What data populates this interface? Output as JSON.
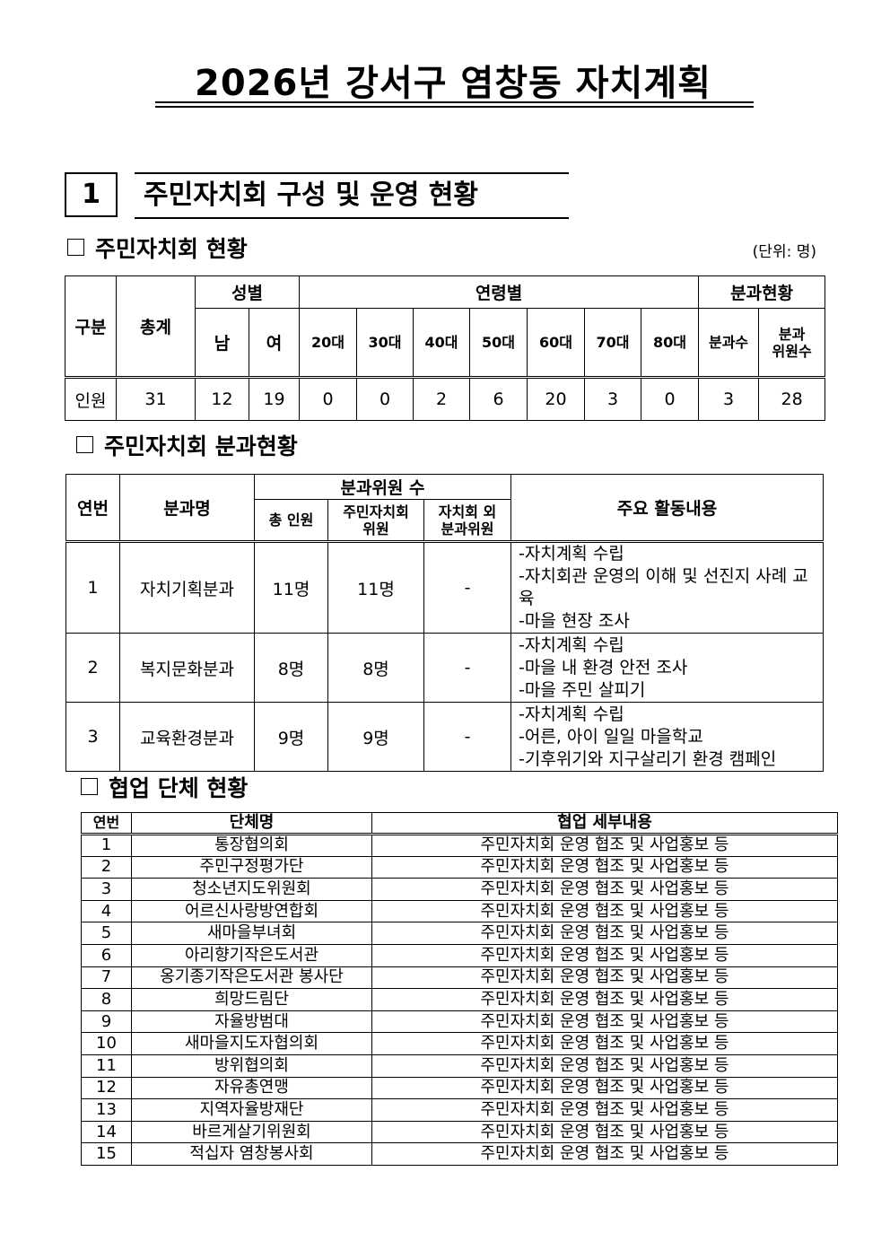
{
  "title": "2026년 강서구 염창동 자치계획",
  "section": {
    "number": "1",
    "title": "주민자치회 구성 및 운영 현황"
  },
  "status": {
    "heading": "주민자치회 현황",
    "unit": "(단위: 명)",
    "headers": {
      "category": "구분",
      "total": "총계",
      "gender": "성별",
      "male": "남",
      "female": "여",
      "age": "연령별",
      "ages": [
        "20대",
        "30대",
        "40대",
        "50대",
        "60대",
        "70대",
        "80대"
      ],
      "subcommittee": "분과현황",
      "sub_count": "분과수",
      "sub_members_1": "분과",
      "sub_members_2": "위원수"
    },
    "row": {
      "label": "인원",
      "total": "31",
      "male": "12",
      "female": "19",
      "ages": [
        "0",
        "0",
        "2",
        "6",
        "20",
        "3",
        "0"
      ],
      "sub_count": "3",
      "sub_members": "28"
    }
  },
  "subcommittees": {
    "heading": "주민자치회 분과현황",
    "headers": {
      "no": "연번",
      "name": "분과명",
      "members": "분과위원 수",
      "total": "총 인원",
      "resident_1": "주민자치회",
      "resident_2": "위원",
      "outside_1": "자치회 외",
      "outside_2": "분과위원",
      "activities": "주요 활동내용"
    },
    "rows": [
      {
        "no": "1",
        "name": "자치기획분과",
        "total": "11명",
        "resident": "11명",
        "outside": "-",
        "activities": [
          "-자치계획 수립",
          "-자치회관 운영의 이해 및 선진지 사례 교육",
          "-마을 현장 조사"
        ]
      },
      {
        "no": "2",
        "name": "복지문화분과",
        "total": "8명",
        "resident": "8명",
        "outside": "-",
        "activities": [
          "-자치계획 수립",
          "-마을 내 환경 안전 조사",
          "-마을 주민 살피기"
        ]
      },
      {
        "no": "3",
        "name": "교육환경분과",
        "total": "9명",
        "resident": "9명",
        "outside": "-",
        "activities": [
          "-자치계획 수립",
          "-어른, 아이 일일 마을학교",
          "-기후위기와 지구살리기 환경 캠페인"
        ]
      }
    ]
  },
  "partners": {
    "heading": "협업 단체 현황",
    "headers": {
      "no": "연번",
      "name": "단체명",
      "detail": "협업 세부내용"
    },
    "rows": [
      {
        "no": "1",
        "name": "통장협의회",
        "detail": "주민자치회 운영 협조 및 사업홍보 등"
      },
      {
        "no": "2",
        "name": "주민구정평가단",
        "detail": "주민자치회 운영 협조 및 사업홍보 등"
      },
      {
        "no": "3",
        "name": "청소년지도위원회",
        "detail": "주민자치회 운영 협조 및 사업홍보 등"
      },
      {
        "no": "4",
        "name": "어르신사랑방연합회",
        "detail": "주민자치회 운영 협조 및 사업홍보 등"
      },
      {
        "no": "5",
        "name": "새마을부녀회",
        "detail": "주민자치회 운영 협조 및 사업홍보 등"
      },
      {
        "no": "6",
        "name": "아리향기작은도서관",
        "detail": "주민자치회 운영 협조 및 사업홍보 등"
      },
      {
        "no": "7",
        "name": "옹기종기작은도서관 봉사단",
        "detail": "주민자치회 운영 협조 및 사업홍보 등"
      },
      {
        "no": "8",
        "name": "희망드림단",
        "detail": "주민자치회 운영 협조 및 사업홍보 등"
      },
      {
        "no": "9",
        "name": "자율방범대",
        "detail": "주민자치회 운영 협조 및 사업홍보 등"
      },
      {
        "no": "10",
        "name": "새마을지도자협의회",
        "detail": "주민자치회 운영 협조 및 사업홍보 등"
      },
      {
        "no": "11",
        "name": "방위협의회",
        "detail": "주민자치회 운영 협조 및 사업홍보 등"
      },
      {
        "no": "12",
        "name": "자유총연맹",
        "detail": "주민자치회 운영 협조 및 사업홍보 등"
      },
      {
        "no": "13",
        "name": "지역자율방재단",
        "detail": "주민자치회 운영 협조 및 사업홍보 등"
      },
      {
        "no": "14",
        "name": "바르게살기위원회",
        "detail": "주민자치회 운영 협조 및 사업홍보 등"
      },
      {
        "no": "15",
        "name": "적십자 염창봉사회",
        "detail": "주민자치회 운영 협조 및 사업홍보 등"
      }
    ]
  }
}
